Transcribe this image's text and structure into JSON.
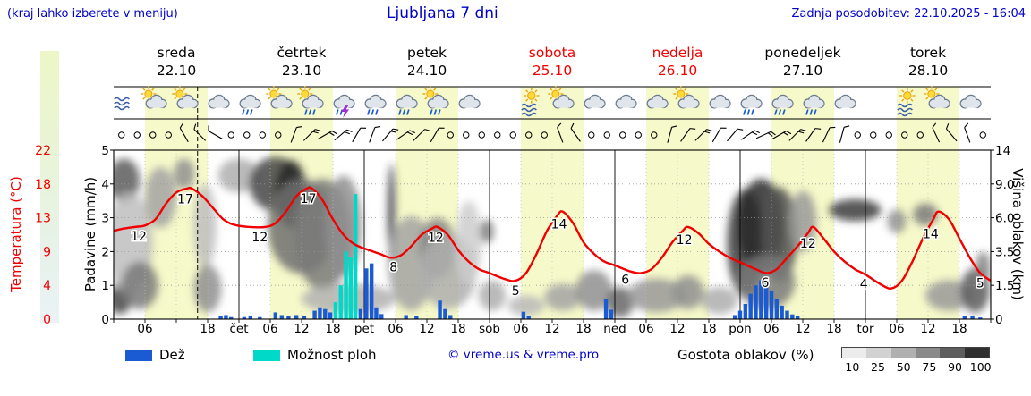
{
  "header": {
    "hint": "(kraj lahko izberete v meniju)",
    "title": "Ljubljana 7 dni",
    "updated": "Zadnja posodobitev: 22.10.2025 - 16:04"
  },
  "axes": {
    "temperature_label": "Temperatura (°C)",
    "precip_label": "Padavine (mm/h)",
    "cloud_label": "Višina oblakov (km)"
  },
  "days": [
    {
      "name": "sreda",
      "date": "22.10",
      "red": false
    },
    {
      "name": "četrtek",
      "date": "23.10",
      "red": false
    },
    {
      "name": "petek",
      "date": "24.10",
      "red": false
    },
    {
      "name": "sobota",
      "date": "25.10",
      "red": true
    },
    {
      "name": "nedelja",
      "date": "26.10",
      "red": true
    },
    {
      "name": "ponedeljek",
      "date": "27.10",
      "red": false
    },
    {
      "name": "torek",
      "date": "28.10",
      "red": false
    }
  ],
  "legend": {
    "rain": "Dež",
    "shower": "Možnost ploh",
    "copyright": "© vreme.us & vreme.pro",
    "cloud": "Gostota oblakov (%)",
    "cloud_scale": [
      "10",
      "25",
      "50",
      "75",
      "90",
      "100"
    ]
  },
  "colors": {
    "blue_text": "#0000cd",
    "red": "#f00000",
    "rain": "#1a5ad2",
    "shower": "#00d8c8",
    "day_band": "#f6f9c9",
    "grid": "#999999",
    "cloud_scale_colors": [
      "#ececec",
      "#d2d2d2",
      "#b0b0b0",
      "#8a8a8a",
      "#5e5e5e",
      "#303030"
    ]
  },
  "chart_data": {
    "type": "line",
    "subtype": "meteogram",
    "title": "Ljubljana 7 dni",
    "hours_total": 168,
    "daylight_hours": [
      6,
      18
    ],
    "now_hour": 16.07,
    "temp_axis": {
      "ticks": [
        "22",
        "18",
        "13",
        "9",
        "4",
        "0"
      ],
      "ylim": [
        0,
        22
      ]
    },
    "precip_axis": {
      "ticks": [
        "5",
        "4",
        "3",
        "2",
        "1",
        "0"
      ],
      "ylim": [
        0,
        5
      ]
    },
    "cloud_axis": {
      "ticks": [
        "14",
        "9.0",
        "6.0",
        "3.5",
        "1.5",
        "0"
      ]
    },
    "bottom_ticks": [
      {
        "h": 6,
        "t": "06"
      },
      {
        "h": 18,
        "t": "18"
      },
      {
        "h": 24,
        "t": "čet"
      },
      {
        "h": 30,
        "t": "06"
      },
      {
        "h": 36,
        "t": "12"
      },
      {
        "h": 42,
        "t": "18"
      },
      {
        "h": 48,
        "t": "pet"
      },
      {
        "h": 54,
        "t": "06"
      },
      {
        "h": 60,
        "t": "12"
      },
      {
        "h": 66,
        "t": "18"
      },
      {
        "h": 72,
        "t": "sob"
      },
      {
        "h": 78,
        "t": "06"
      },
      {
        "h": 84,
        "t": "12"
      },
      {
        "h": 90,
        "t": "18"
      },
      {
        "h": 96,
        "t": "ned"
      },
      {
        "h": 102,
        "t": "06"
      },
      {
        "h": 108,
        "t": "12"
      },
      {
        "h": 114,
        "t": "18"
      },
      {
        "h": 120,
        "t": "pon"
      },
      {
        "h": 126,
        "t": "06"
      },
      {
        "h": 132,
        "t": "12"
      },
      {
        "h": 138,
        "t": "18"
      },
      {
        "h": 144,
        "t": "tor"
      },
      {
        "h": 150,
        "t": "06"
      },
      {
        "h": 156,
        "t": "12"
      },
      {
        "h": 162,
        "t": "18"
      }
    ],
    "temperature": {
      "points": [
        [
          0,
          11.5
        ],
        [
          2,
          11.8
        ],
        [
          4,
          12
        ],
        [
          6,
          12.2
        ],
        [
          8,
          13
        ],
        [
          10,
          15
        ],
        [
          12,
          16.5
        ],
        [
          14,
          17
        ],
        [
          15,
          17
        ],
        [
          17,
          16
        ],
        [
          19,
          14.5
        ],
        [
          21,
          13
        ],
        [
          23,
          12.3
        ],
        [
          26,
          12
        ],
        [
          29,
          12
        ],
        [
          31,
          12.5
        ],
        [
          33,
          14
        ],
        [
          35,
          16
        ],
        [
          37,
          17
        ],
        [
          38,
          17
        ],
        [
          40,
          15.5
        ],
        [
          42,
          13
        ],
        [
          44,
          11
        ],
        [
          46,
          9.8
        ],
        [
          48,
          9.2
        ],
        [
          51,
          8.5
        ],
        [
          53,
          8
        ],
        [
          55,
          8.3
        ],
        [
          57,
          9.5
        ],
        [
          59,
          11
        ],
        [
          61,
          11.8
        ],
        [
          62,
          12
        ],
        [
          64,
          11
        ],
        [
          66,
          9
        ],
        [
          68,
          7.5
        ],
        [
          70,
          6.5
        ],
        [
          72,
          6
        ],
        [
          75,
          5.2
        ],
        [
          77,
          5
        ],
        [
          79,
          6
        ],
        [
          81,
          8.5
        ],
        [
          83,
          11.5
        ],
        [
          85,
          13.5
        ],
        [
          86,
          14
        ],
        [
          88,
          12.5
        ],
        [
          90,
          10
        ],
        [
          92,
          8.5
        ],
        [
          94,
          7.5
        ],
        [
          96,
          7
        ],
        [
          99,
          6.2
        ],
        [
          101,
          6
        ],
        [
          103,
          6.5
        ],
        [
          105,
          8
        ],
        [
          107,
          10
        ],
        [
          109,
          11.5
        ],
        [
          110,
          12
        ],
        [
          112,
          11.2
        ],
        [
          114,
          9.8
        ],
        [
          116,
          8.8
        ],
        [
          118,
          8
        ],
        [
          120,
          7.4
        ],
        [
          123,
          6.5
        ],
        [
          125,
          6
        ],
        [
          127,
          6.5
        ],
        [
          129,
          8
        ],
        [
          131,
          9.5
        ],
        [
          133,
          11.2
        ],
        [
          134,
          12
        ],
        [
          136,
          10.5
        ],
        [
          138,
          8.8
        ],
        [
          140,
          7.5
        ],
        [
          142,
          6.5
        ],
        [
          144,
          5.8
        ],
        [
          147,
          4.5
        ],
        [
          149,
          4
        ],
        [
          151,
          5
        ],
        [
          153,
          7.5
        ],
        [
          155,
          10.5
        ],
        [
          157,
          13
        ],
        [
          158,
          14
        ],
        [
          160,
          13
        ],
        [
          162,
          10.5
        ],
        [
          164,
          8
        ],
        [
          166,
          6
        ],
        [
          168,
          5
        ]
      ],
      "labels": [
        {
          "h": 4.8,
          "t": "12"
        },
        {
          "h": 13.7,
          "t": "17"
        },
        {
          "h": 28,
          "t": "12"
        },
        {
          "h": 37.3,
          "t": "17"
        },
        {
          "h": 53.6,
          "t": "8"
        },
        {
          "h": 61.7,
          "t": "12"
        },
        {
          "h": 77,
          "t": "5"
        },
        {
          "h": 85.3,
          "t": "14"
        },
        {
          "h": 98,
          "t": "6"
        },
        {
          "h": 109.3,
          "t": "12"
        },
        {
          "h": 124.8,
          "t": "6"
        },
        {
          "h": 133,
          "t": "12"
        },
        {
          "h": 143.7,
          "t": "4"
        },
        {
          "h": 156.5,
          "t": "14"
        },
        {
          "h": 166,
          "t": "5"
        }
      ]
    },
    "rain_bars": [
      [
        20.5,
        0.08
      ],
      [
        21.5,
        0.12
      ],
      [
        22.5,
        0.06
      ],
      [
        25,
        0.06
      ],
      [
        26.2,
        0.1
      ],
      [
        28,
        0.06
      ],
      [
        31,
        0.2
      ],
      [
        32.2,
        0.12
      ],
      [
        33.5,
        0.1
      ],
      [
        35,
        0.12
      ],
      [
        36.5,
        0.1
      ],
      [
        38.5,
        0.25
      ],
      [
        39.5,
        0.35
      ],
      [
        40.5,
        0.3
      ],
      [
        41.5,
        0.2
      ],
      [
        47.3,
        0.3
      ],
      [
        48.4,
        1.5
      ],
      [
        49.4,
        1.65
      ],
      [
        50.3,
        0.35
      ],
      [
        51.3,
        0.15
      ],
      [
        56,
        0.12
      ],
      [
        58,
        0.1
      ],
      [
        62.5,
        0.55
      ],
      [
        63.5,
        0.3
      ],
      [
        64.5,
        0.12
      ],
      [
        78.5,
        0.22
      ],
      [
        79.5,
        0.1
      ],
      [
        94.3,
        0.6
      ],
      [
        95.3,
        0.28
      ],
      [
        119,
        0.12
      ],
      [
        120,
        0.25
      ],
      [
        121,
        0.45
      ],
      [
        122,
        0.75
      ],
      [
        123,
        1.0
      ],
      [
        124,
        1.15
      ],
      [
        125,
        1.05
      ],
      [
        126,
        0.85
      ],
      [
        127,
        0.6
      ],
      [
        128,
        0.4
      ],
      [
        129,
        0.25
      ],
      [
        130,
        0.14
      ],
      [
        131,
        0.08
      ],
      [
        163,
        0.08
      ],
      [
        164.5,
        0.1
      ],
      [
        166,
        0.05
      ]
    ],
    "shower_bars": [
      [
        42.5,
        0.5
      ],
      [
        43.5,
        1.0
      ],
      [
        44.5,
        2.0
      ],
      [
        45.4,
        1.85
      ],
      [
        46.3,
        3.7
      ]
    ],
    "clouds": [
      [
        2,
        0.82,
        3,
        0.13,
        70
      ],
      [
        1.2,
        0.12,
        2.2,
        0.09,
        80
      ],
      [
        3,
        0.45,
        4.5,
        0.3,
        22
      ],
      [
        5,
        0.2,
        3.5,
        0.14,
        55
      ],
      [
        9,
        0.72,
        3,
        0.18,
        35
      ],
      [
        13.5,
        0.86,
        2,
        0.09,
        45
      ],
      [
        17.5,
        0.55,
        2.2,
        0.25,
        22
      ],
      [
        18,
        0.18,
        2.6,
        0.14,
        45
      ],
      [
        24,
        0.85,
        4,
        0.1,
        30
      ],
      [
        31,
        0.8,
        5,
        0.16,
        80
      ],
      [
        34,
        0.74,
        3,
        0.2,
        95
      ],
      [
        36,
        0.55,
        6.5,
        0.28,
        60
      ],
      [
        40,
        0.5,
        5.5,
        0.33,
        55
      ],
      [
        44,
        0.55,
        3.5,
        0.3,
        45
      ],
      [
        45,
        0.12,
        9,
        0.09,
        28
      ],
      [
        53.2,
        0.62,
        0.7,
        0.3,
        92
      ],
      [
        57,
        0.33,
        4.5,
        0.28,
        35
      ],
      [
        62,
        0.42,
        3.5,
        0.18,
        50
      ],
      [
        64,
        0.28,
        5.5,
        0.22,
        30
      ],
      [
        68,
        0.45,
        2.5,
        0.25,
        15
      ],
      [
        71.5,
        0.52,
        1.3,
        0.07,
        55
      ],
      [
        72.5,
        0.14,
        2.6,
        0.09,
        30
      ],
      [
        79,
        0.08,
        3.5,
        0.06,
        25
      ],
      [
        86,
        0.13,
        3.5,
        0.08,
        35
      ],
      [
        92,
        0.17,
        3.5,
        0.12,
        45
      ],
      [
        97,
        0.1,
        2.6,
        0.09,
        65
      ],
      [
        104,
        0.14,
        5.5,
        0.1,
        40
      ],
      [
        110,
        0.16,
        3,
        0.1,
        45
      ],
      [
        116,
        0.11,
        3.5,
        0.08,
        30
      ],
      [
        121,
        0.45,
        3.5,
        0.32,
        85
      ],
      [
        124,
        0.55,
        4.5,
        0.28,
        95
      ],
      [
        127.5,
        0.5,
        3.5,
        0.28,
        75
      ],
      [
        125,
        0.22,
        5.5,
        0.16,
        55
      ],
      [
        132,
        0.58,
        2.6,
        0.18,
        40
      ],
      [
        142,
        0.645,
        5,
        0.065,
        85
      ],
      [
        150,
        0.58,
        1.8,
        0.07,
        45
      ],
      [
        155.5,
        0.62,
        2.4,
        0.065,
        55
      ],
      [
        160,
        0.14,
        4.5,
        0.09,
        40
      ],
      [
        165,
        0.17,
        2.8,
        0.13,
        70
      ],
      [
        166.5,
        0.3,
        1.5,
        0.1,
        50
      ]
    ],
    "icons": [
      "fog",
      "sun-cloud",
      "sun-cloud",
      "moon-cloud",
      "cloud-rain",
      "sun-cloud",
      "sun-cloud-rain",
      "storm",
      "moon-cloud-rain",
      "cloud-rain",
      "sun-cloud-rain",
      "moon-cloud",
      "moon",
      "sun-fog",
      "sun-cloud",
      "moon-cloud",
      "moon-cloud",
      "cloud",
      "sun-cloud",
      "moon-cloud",
      "cloud-rain",
      "cloud-rain",
      "cloud-rain",
      "moon-cloud",
      "moon",
      "sun-fog",
      "sun-cloud",
      "moon-cloud"
    ],
    "wind": [
      "o",
      "o",
      "o",
      "o",
      "b:-30:1",
      "b:-45:1",
      "b:-60:1",
      "o",
      "o",
      "o",
      "o",
      "b:20:1",
      "b:45:2",
      "b:60:2",
      "b:50:2",
      "b:30:1",
      "b:20:1",
      "b:40:2",
      "b:55:2",
      "b:45:1",
      "b:30:1",
      "o",
      "o",
      "o",
      "o",
      "o",
      "o",
      "o",
      "b:-20:1",
      "b:-35:1",
      "o",
      "o",
      "o",
      "o",
      "o",
      "b:15:1",
      "b:35:1",
      "b:45:2",
      "b:30:1",
      "b:40:1",
      "b:55:2",
      "b:65:2",
      "b:60:2",
      "b:45:2",
      "b:35:1",
      "b:25:1",
      "b:15:1",
      "o",
      "o",
      "o",
      "o",
      "o",
      "b:-25:1",
      "b:-40:1",
      "b:-20:1",
      "o"
    ]
  }
}
